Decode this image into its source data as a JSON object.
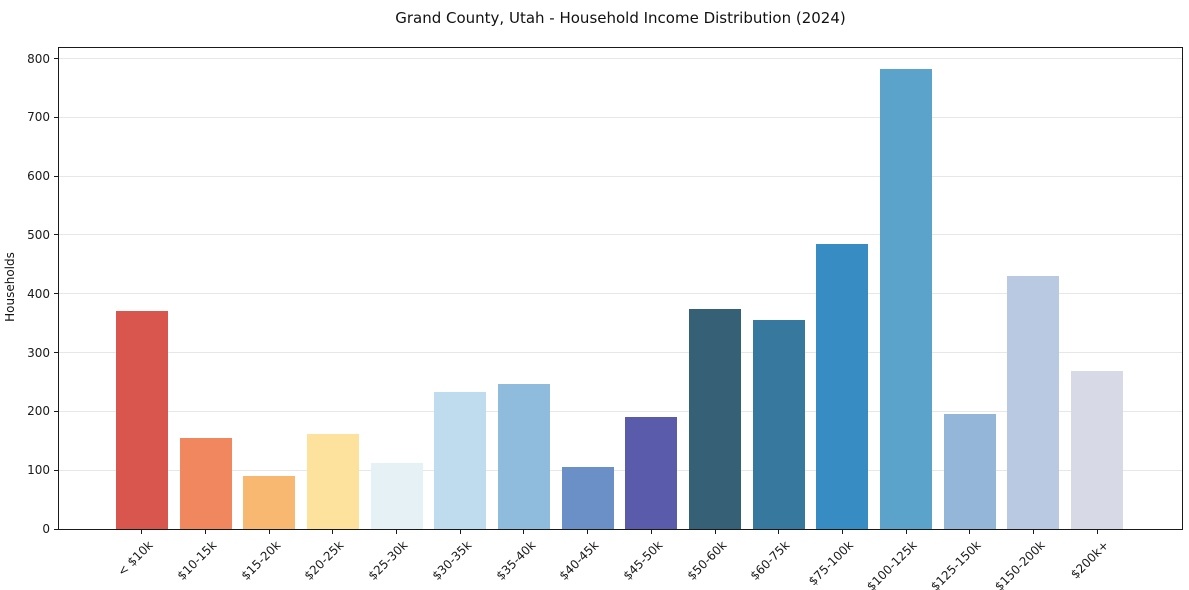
{
  "chart_data": {
    "type": "bar",
    "title": "Grand County, Utah - Household Income Distribution (2024)",
    "xlabel": "",
    "ylabel": "Households",
    "categories": [
      "< $10k",
      "$10-15k",
      "$15-20k",
      "$20-25k",
      "$25-30k",
      "$30-35k",
      "$35-40k",
      "$40-45k",
      "$45-50k",
      "$50-60k",
      "$60-75k",
      "$75-100k",
      "$100-125k",
      "$125-150k",
      "$150-200k",
      "$200k+"
    ],
    "values": [
      370,
      155,
      90,
      161,
      112,
      233,
      246,
      106,
      191,
      374,
      355,
      484,
      783,
      196,
      431,
      268
    ],
    "bar_colors": [
      "#d9564e",
      "#f0875f",
      "#f9b871",
      "#fde29e",
      "#e6f1f5",
      "#bedced",
      "#8fbcdc",
      "#6b90c7",
      "#5a5cab",
      "#356076",
      "#37789f",
      "#378cc4",
      "#5ba3ca",
      "#93b6d9",
      "#bac9e2",
      "#d8d9e6"
    ],
    "yticks": [
      0,
      100,
      200,
      300,
      400,
      500,
      600,
      700,
      800
    ],
    "ylim": [
      0,
      818
    ],
    "grid": "horizontal",
    "legend": "none",
    "background_color": "#ffffff",
    "gridline_color": "#e7e7e7",
    "axis_color": "#1a1a1a"
  }
}
